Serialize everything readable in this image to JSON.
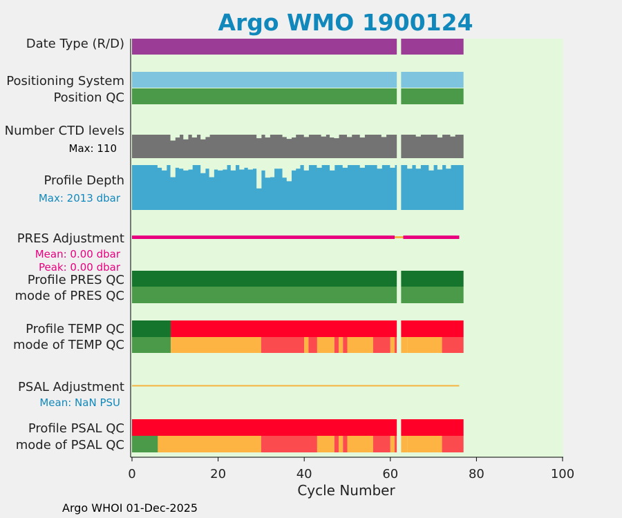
{
  "chart_data": {
    "type": "bar",
    "title": "Argo WMO 1900124",
    "xlabel": "Cycle Number",
    "x_ticks": [
      "0",
      "20",
      "40",
      "60",
      "80",
      "100"
    ],
    "xlim": [
      0,
      100
    ],
    "footer": "Argo WHOI 01-Dec-2025",
    "max_cycle": 76,
    "missing_cycles": [
      62
    ],
    "colors": {
      "title": "#1188bb",
      "background": "#e4f8dc",
      "figure": "#f0f0f0",
      "date_type": "#9b3d96",
      "positioning_system": "#7ec4de",
      "qc_good": "#4a9a49",
      "qc_dark_green": "#16752c",
      "ctd_levels": "#737373",
      "profile_depth": "#41a8cf",
      "pres_adjustment": "#e8007e",
      "adjustment_line": "#f5b340",
      "qc_red": "#ff0029",
      "qc_orange": "#fdb443",
      "qc_light_red": "#fc4b4f",
      "psal_text": "#1188bb"
    },
    "rows": {
      "date_type": {
        "label": "Date Type (R/D)"
      },
      "positioning_system": {
        "label": "Positioning System"
      },
      "position_qc": {
        "label": "Position QC"
      },
      "ctd_levels": {
        "label": "Number CTD levels",
        "max_text": "Max: 110",
        "deficits": [
          [
            9,
            0.25
          ],
          [
            10,
            0.12
          ],
          [
            12,
            0.2
          ],
          [
            14,
            0.12
          ],
          [
            16,
            0.2
          ],
          [
            17,
            0.1
          ],
          [
            29,
            0.15
          ],
          [
            31,
            0.12
          ],
          [
            35,
            0.1
          ],
          [
            36,
            0.18
          ],
          [
            37,
            0.12
          ],
          [
            40,
            0.1
          ],
          [
            44,
            0.08
          ],
          [
            46,
            0.12
          ],
          [
            47,
            0.15
          ],
          [
            50,
            0.1
          ],
          [
            53,
            0.12
          ],
          [
            58,
            0.1
          ],
          [
            66,
            0.08
          ],
          [
            71,
            0.12
          ],
          [
            74,
            0.08
          ]
        ]
      },
      "profile_depth": {
        "label": "Profile Depth",
        "max_text": "Max: 2013 dbar",
        "deficits": [
          [
            6,
            0.06
          ],
          [
            7,
            0.12
          ],
          [
            9,
            0.27
          ],
          [
            10,
            0.06
          ],
          [
            11,
            0.08
          ],
          [
            12,
            0.12
          ],
          [
            13,
            0.1
          ],
          [
            16,
            0.18
          ],
          [
            17,
            0.08
          ],
          [
            18,
            0.27
          ],
          [
            19,
            0.1
          ],
          [
            20,
            0.12
          ],
          [
            21,
            0.1
          ],
          [
            23,
            0.12
          ],
          [
            25,
            0.1
          ],
          [
            26,
            0.06
          ],
          [
            27,
            0.1
          ],
          [
            28,
            0.08
          ],
          [
            29,
            0.52
          ],
          [
            30,
            0.12
          ],
          [
            31,
            0.28
          ],
          [
            32,
            0.27
          ],
          [
            33,
            0.08
          ],
          [
            34,
            0.08
          ],
          [
            35,
            0.28
          ],
          [
            36,
            0.36
          ],
          [
            37,
            0.12
          ],
          [
            38,
            0.08
          ],
          [
            40,
            0.12
          ],
          [
            43,
            0.06
          ],
          [
            46,
            0.12
          ],
          [
            49,
            0.06
          ],
          [
            53,
            0.06
          ],
          [
            57,
            0.08
          ],
          [
            60,
            0.06
          ],
          [
            64,
            0.08
          ],
          [
            66,
            0.08
          ],
          [
            69,
            0.12
          ],
          [
            71,
            0.1
          ],
          [
            73,
            0.08
          ]
        ]
      },
      "pres_adjustment": {
        "label": "PRES Adjustment",
        "mean_text": "Mean: 0.00 dbar",
        "peak_text": "Peak: 0.00 dbar"
      },
      "profile_pres_qc": {
        "label": "Profile PRES QC"
      },
      "mode_pres_qc": {
        "label": "mode of PRES QC"
      },
      "profile_temp_qc": {
        "label": "Profile TEMP QC",
        "segments": [
          [
            0,
            9,
            "qc_dark_green"
          ],
          [
            9,
            77,
            "qc_red"
          ]
        ]
      },
      "mode_temp_qc": {
        "label": "mode of TEMP QC",
        "segments": [
          [
            0,
            9,
            "qc_good"
          ],
          [
            9,
            30,
            "qc_orange"
          ],
          [
            30,
            40,
            "qc_light_red"
          ],
          [
            40,
            41,
            "qc_orange"
          ],
          [
            41,
            43,
            "qc_light_red"
          ],
          [
            43,
            47,
            "qc_orange"
          ],
          [
            47,
            48,
            "qc_light_red"
          ],
          [
            48,
            49,
            "qc_orange"
          ],
          [
            49,
            50,
            "qc_light_red"
          ],
          [
            50,
            56,
            "qc_orange"
          ],
          [
            56,
            60,
            "qc_light_red"
          ],
          [
            60,
            61,
            "qc_orange"
          ],
          [
            61,
            62,
            "qc_light_red"
          ],
          [
            62,
            64,
            "qc_orange"
          ],
          [
            64,
            72,
            "qc_orange"
          ],
          [
            72,
            77,
            "qc_light_red"
          ]
        ]
      },
      "psal_adjustment": {
        "label": "PSAL Adjustment",
        "mean_text": "Mean:  NaN PSU"
      },
      "profile_psal_qc": {
        "label": "Profile PSAL QC",
        "segments": [
          [
            0,
            77,
            "qc_red"
          ]
        ]
      },
      "mode_psal_qc": {
        "label": "mode of PSAL QC",
        "segments": [
          [
            0,
            6,
            "qc_good"
          ],
          [
            6,
            30,
            "qc_orange"
          ],
          [
            30,
            43,
            "qc_light_red"
          ],
          [
            43,
            47,
            "qc_orange"
          ],
          [
            47,
            48,
            "qc_light_red"
          ],
          [
            48,
            49,
            "qc_orange"
          ],
          [
            49,
            50,
            "qc_light_red"
          ],
          [
            50,
            56,
            "qc_orange"
          ],
          [
            56,
            60,
            "qc_light_red"
          ],
          [
            60,
            61,
            "qc_orange"
          ],
          [
            61,
            62,
            "qc_light_red"
          ],
          [
            62,
            64,
            "qc_orange"
          ],
          [
            64,
            72,
            "qc_orange"
          ],
          [
            72,
            77,
            "qc_light_red"
          ]
        ]
      }
    }
  }
}
